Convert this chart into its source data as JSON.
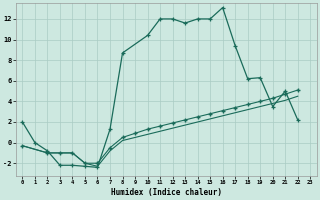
{
  "xlabel": "Humidex (Indice chaleur)",
  "bg_color": "#cde8e0",
  "grid_color": "#aaccc4",
  "line_color": "#1a6b5a",
  "xlim": [
    -0.5,
    23.5
  ],
  "ylim": [
    -3.2,
    13.5
  ],
  "xticks": [
    0,
    1,
    2,
    3,
    4,
    5,
    6,
    7,
    8,
    9,
    10,
    11,
    12,
    13,
    14,
    15,
    16,
    17,
    18,
    19,
    20,
    21,
    22,
    23
  ],
  "yticks": [
    -2,
    0,
    2,
    4,
    6,
    8,
    10,
    12
  ],
  "line1_x": [
    0,
    1,
    2,
    3,
    4,
    5,
    6,
    7,
    8,
    10,
    11,
    12,
    13,
    14,
    15,
    16,
    17,
    18,
    19,
    20,
    21,
    22
  ],
  "line1_y": [
    2.0,
    0.0,
    -0.8,
    -2.2,
    -2.2,
    -2.3,
    -2.4,
    1.3,
    8.7,
    10.4,
    12.0,
    12.0,
    11.6,
    12.0,
    12.0,
    13.1,
    9.4,
    6.2,
    6.3,
    3.5,
    5.0,
    2.2
  ],
  "line2_x": [
    0,
    2,
    3,
    4,
    5,
    6,
    7,
    8,
    9,
    10,
    11,
    12,
    13,
    14,
    15,
    16,
    17,
    18,
    19,
    20,
    21,
    22
  ],
  "line2_y": [
    -0.3,
    -1.0,
    -1.0,
    -1.0,
    -2.0,
    -2.0,
    -0.5,
    0.5,
    0.9,
    1.3,
    1.6,
    1.9,
    2.2,
    2.5,
    2.8,
    3.1,
    3.4,
    3.7,
    4.0,
    4.3,
    4.7,
    5.1
  ],
  "line3_x": [
    0,
    2,
    3,
    4,
    5,
    6,
    7,
    8,
    9,
    10,
    11,
    12,
    13,
    14,
    15,
    16,
    17,
    18,
    19,
    20,
    21,
    22
  ],
  "line3_y": [
    -0.3,
    -1.0,
    -1.0,
    -1.0,
    -2.0,
    -2.3,
    -0.8,
    0.2,
    0.5,
    0.8,
    1.1,
    1.4,
    1.7,
    2.0,
    2.3,
    2.6,
    2.9,
    3.2,
    3.5,
    3.8,
    4.1,
    4.5
  ]
}
